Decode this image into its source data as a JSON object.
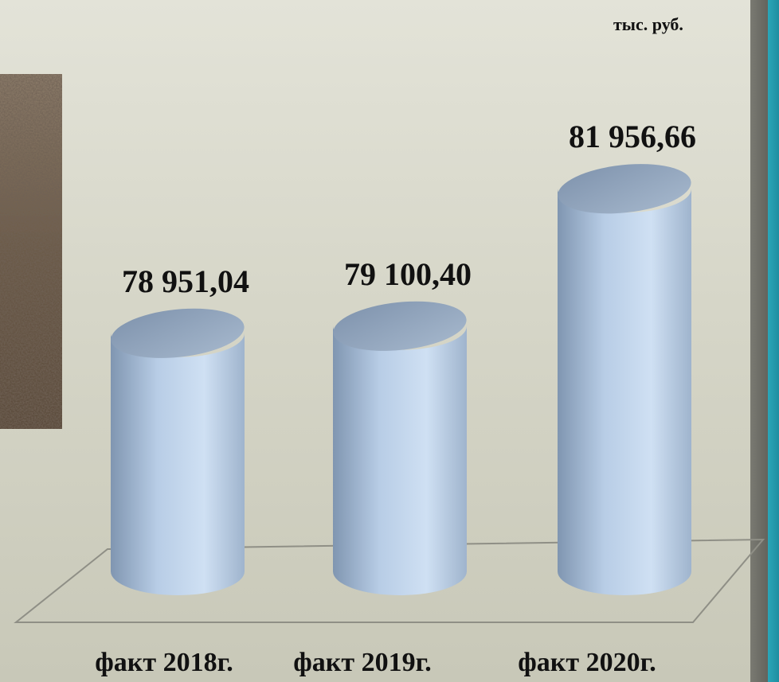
{
  "unit_label": "тыс. руб.",
  "chart_data": {
    "type": "bar",
    "categories": [
      "факт 2018г.",
      "факт 2019г.",
      "факт 2020г."
    ],
    "values": [
      78951.04,
      79100.4,
      81956.66
    ],
    "value_labels": [
      "78 951,04",
      "79 100,40",
      "81 956,66"
    ],
    "ylim": [
      74000,
      83400
    ],
    "grid": false,
    "legend": "none"
  },
  "colors": {
    "bar_light": "#cfe0f3",
    "bar_mid": "#a9bfd8",
    "bar_dark": "#8096b1",
    "bar_top": "#8ea2bb",
    "floor_line": "#8f8f86"
  }
}
